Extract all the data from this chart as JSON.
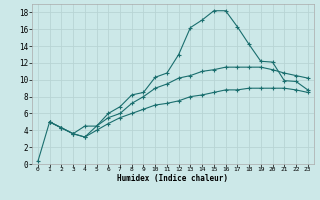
{
  "xlabel": "Humidex (Indice chaleur)",
  "background_color": "#cce8e8",
  "grid_color": "#b8d4d4",
  "line_color": "#1a6e6e",
  "xlim": [
    -0.5,
    23.5
  ],
  "ylim": [
    0,
    19
  ],
  "xticks": [
    0,
    1,
    2,
    3,
    4,
    5,
    6,
    7,
    8,
    9,
    10,
    11,
    12,
    13,
    14,
    15,
    16,
    17,
    18,
    19,
    20,
    21,
    22,
    23
  ],
  "yticks": [
    0,
    2,
    4,
    6,
    8,
    10,
    12,
    14,
    16,
    18
  ],
  "series1_x": [
    0,
    1,
    2,
    3,
    4,
    5,
    6,
    7,
    8,
    9,
    10,
    11,
    12,
    13,
    14,
    15,
    16,
    17,
    18,
    19,
    20,
    21,
    22,
    23
  ],
  "series1_y": [
    0.3,
    5.0,
    4.3,
    3.6,
    4.5,
    4.5,
    6.0,
    6.8,
    8.2,
    8.5,
    10.3,
    10.8,
    13.0,
    16.2,
    17.1,
    18.2,
    18.2,
    16.3,
    14.2,
    12.2,
    12.1,
    9.9,
    9.8,
    8.8
  ],
  "series2_x": [
    1,
    2,
    3,
    4,
    5,
    6,
    7,
    8,
    9,
    10,
    11,
    12,
    13,
    14,
    15,
    16,
    17,
    18,
    19,
    20,
    21,
    22,
    23
  ],
  "series2_y": [
    5.0,
    4.3,
    3.6,
    3.2,
    4.5,
    5.5,
    6.0,
    7.2,
    8.0,
    9.0,
    9.5,
    10.2,
    10.5,
    11.0,
    11.2,
    11.5,
    11.5,
    11.5,
    11.5,
    11.2,
    10.8,
    10.5,
    10.2
  ],
  "series3_x": [
    1,
    2,
    3,
    4,
    5,
    6,
    7,
    8,
    9,
    10,
    11,
    12,
    13,
    14,
    15,
    16,
    17,
    18,
    19,
    20,
    21,
    22,
    23
  ],
  "series3_y": [
    5.0,
    4.3,
    3.6,
    3.2,
    4.0,
    4.8,
    5.5,
    6.0,
    6.5,
    7.0,
    7.2,
    7.5,
    8.0,
    8.2,
    8.5,
    8.8,
    8.8,
    9.0,
    9.0,
    9.0,
    9.0,
    8.8,
    8.5
  ]
}
